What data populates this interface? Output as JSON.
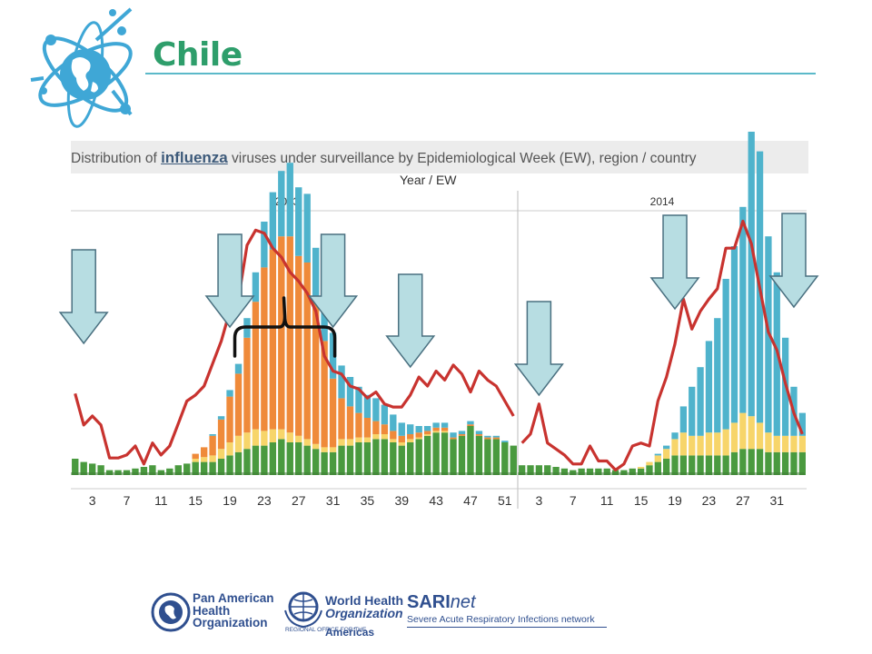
{
  "slide": {
    "title": "Chile"
  },
  "chart_heading": {
    "prefix": "Distribution of ",
    "keyword": "influenza",
    "suffix": " viruses under surveillance by Epidemiological Week (EW), region / country"
  },
  "colors": {
    "title": "#2e9e6b",
    "rule": "#5bb9c9",
    "line": "#c8332f",
    "green": "#4a9a3f",
    "yellow": "#f7d56a",
    "orange": "#ef8a3a",
    "blue": "#4fb3cc",
    "arrow_fill": "#b7dde2",
    "arrow_stroke": "#4a7080"
  },
  "icons": [
    "globe-logo-icon",
    "paho-seal-icon",
    "who-emblem-icon",
    "down-arrow-icon",
    "curly-brace-icon"
  ],
  "footer": {
    "paho": [
      "Pan American",
      "Health",
      "Organization"
    ],
    "who": [
      "World Health",
      "Organization"
    ],
    "who_regional": "REGIONAL OFFICE FOR THE",
    "who_americas": "Americas",
    "sari_bold": "SARI",
    "sari_italic": "net",
    "sari_sub": "Severe Acute Respiratory Infections network"
  },
  "chart_data": {
    "type": "bar",
    "stacked": true,
    "title": "Distribution of influenza viruses under surveillance by Epidemiological Week (EW), region / country",
    "xlabel": "Year  /  EW",
    "ylabel": "",
    "grid": false,
    "panels": [
      {
        "year": "2013",
        "week_start": 1,
        "week_count": 52,
        "x_ticks": [
          "3",
          "7",
          "11",
          "15",
          "19",
          "23",
          "27",
          "31",
          "35",
          "39",
          "43",
          "47",
          "51"
        ],
        "series": [
          {
            "color_key": "green",
            "values": [
              10,
              8,
              7,
              6,
              3,
              3,
              3,
              4,
              5,
              6,
              3,
              4,
              6,
              7,
              8,
              8,
              8,
              10,
              12,
              14,
              16,
              18,
              18,
              20,
              22,
              20,
              20,
              18,
              16,
              14,
              14,
              18,
              18,
              20,
              20,
              22,
              22,
              20,
              18,
              20,
              22,
              24,
              26,
              26,
              22,
              24,
              30,
              24,
              22,
              22,
              20,
              18
            ]
          },
          {
            "color_key": "yellow",
            "values": [
              0,
              0,
              0,
              0,
              0,
              0,
              0,
              0,
              0,
              0,
              0,
              0,
              0,
              0,
              2,
              3,
              4,
              6,
              8,
              10,
              10,
              10,
              9,
              8,
              6,
              6,
              4,
              4,
              3,
              3,
              3,
              4,
              4,
              3,
              3,
              3,
              3,
              2,
              2,
              2,
              1,
              1,
              1,
              1,
              0,
              0,
              0,
              0,
              0,
              0,
              0,
              0
            ]
          },
          {
            "color_key": "orange",
            "values": [
              0,
              0,
              0,
              0,
              0,
              0,
              0,
              0,
              0,
              0,
              0,
              0,
              0,
              0,
              3,
              6,
              12,
              18,
              28,
              38,
              58,
              78,
              100,
              110,
              118,
              120,
              110,
              108,
              90,
              65,
              42,
              25,
              20,
              15,
              12,
              8,
              6,
              5,
              4,
              3,
              3,
              2,
              2,
              2,
              1,
              1,
              1,
              1,
              1,
              1,
              0,
              0
            ]
          },
          {
            "color_key": "blue",
            "values": [
              0,
              0,
              0,
              0,
              0,
              0,
              0,
              0,
              0,
              0,
              0,
              0,
              0,
              0,
              0,
              0,
              1,
              2,
              4,
              6,
              12,
              18,
              28,
              35,
              40,
              45,
              42,
              42,
              30,
              25,
              28,
              20,
              18,
              16,
              14,
              14,
              12,
              10,
              8,
              6,
              4,
              3,
              3,
              3,
              3,
              2,
              2,
              2,
              1,
              1,
              1,
              0
            ]
          }
        ],
        "line_percent_positive": [
          55,
          34,
          40,
          34,
          12,
          12,
          14,
          20,
          8,
          22,
          14,
          20,
          35,
          50,
          54,
          60,
          75,
          90,
          110,
          118,
          154,
          164,
          162,
          152,
          146,
          136,
          130,
          122,
          110,
          80,
          70,
          68,
          60,
          58,
          52,
          56,
          48,
          46,
          46,
          54,
          66,
          60,
          70,
          64,
          74,
          68,
          56,
          70,
          64,
          60,
          50,
          40
        ]
      },
      {
        "year": "2014",
        "week_start": 1,
        "week_count": 34,
        "x_ticks": [
          "3",
          "7",
          "11",
          "15",
          "19",
          "23",
          "27",
          "31"
        ],
        "series": [
          {
            "color_key": "green",
            "values": [
              6,
              6,
              6,
              6,
              5,
              4,
              3,
              4,
              4,
              4,
              4,
              3,
              3,
              4,
              4,
              6,
              8,
              10,
              12,
              12,
              12,
              12,
              12,
              12,
              12,
              14,
              16,
              16,
              16,
              14,
              14,
              14,
              14,
              14
            ]
          },
          {
            "color_key": "yellow",
            "values": [
              0,
              0,
              0,
              0,
              0,
              0,
              0,
              0,
              0,
              0,
              0,
              0,
              0,
              0,
              1,
              2,
              4,
              6,
              10,
              14,
              12,
              12,
              14,
              14,
              16,
              18,
              22,
              20,
              16,
              12,
              10,
              10,
              10,
              10
            ]
          },
          {
            "color_key": "orange",
            "values": [
              0,
              0,
              0,
              0,
              0,
              0,
              0,
              0,
              0,
              0,
              0,
              0,
              0,
              0,
              0,
              0,
              0,
              0,
              0,
              0,
              0,
              0,
              0,
              0,
              0,
              0,
              0,
              0,
              0,
              0,
              0,
              0,
              0,
              0
            ]
          },
          {
            "color_key": "blue",
            "values": [
              0,
              0,
              0,
              0,
              0,
              0,
              0,
              0,
              0,
              0,
              0,
              0,
              0,
              0,
              0,
              0,
              1,
              2,
              4,
              16,
              30,
              42,
              56,
              70,
              92,
              108,
              126,
              174,
              166,
              120,
              100,
              60,
              30,
              14
            ]
          }
        ],
        "line_percent_positive": [
          22,
          28,
          48,
          22,
          18,
          14,
          8,
          8,
          20,
          10,
          10,
          4,
          8,
          20,
          22,
          20,
          50,
          66,
          88,
          118,
          98,
          110,
          118,
          125,
          152,
          152,
          170,
          155,
          125,
          96,
          84,
          62,
          42,
          28
        ]
      }
    ],
    "annotations": [
      {
        "type": "arrow-down",
        "panel": "2013",
        "week": 2
      },
      {
        "type": "arrow-down",
        "panel": "2013",
        "week": 19
      },
      {
        "type": "arrow-down",
        "panel": "2013",
        "week": 31
      },
      {
        "type": "arrow-down",
        "panel": "2013",
        "week": 40
      },
      {
        "type": "arrow-down",
        "panel": "2014",
        "week": 3
      },
      {
        "type": "arrow-down",
        "panel": "2014",
        "week": 19
      },
      {
        "type": "arrow-down",
        "panel": "2014",
        "week": 33
      },
      {
        "type": "brace",
        "panel": "2013",
        "from_week": 20,
        "to_week": 31
      }
    ]
  }
}
